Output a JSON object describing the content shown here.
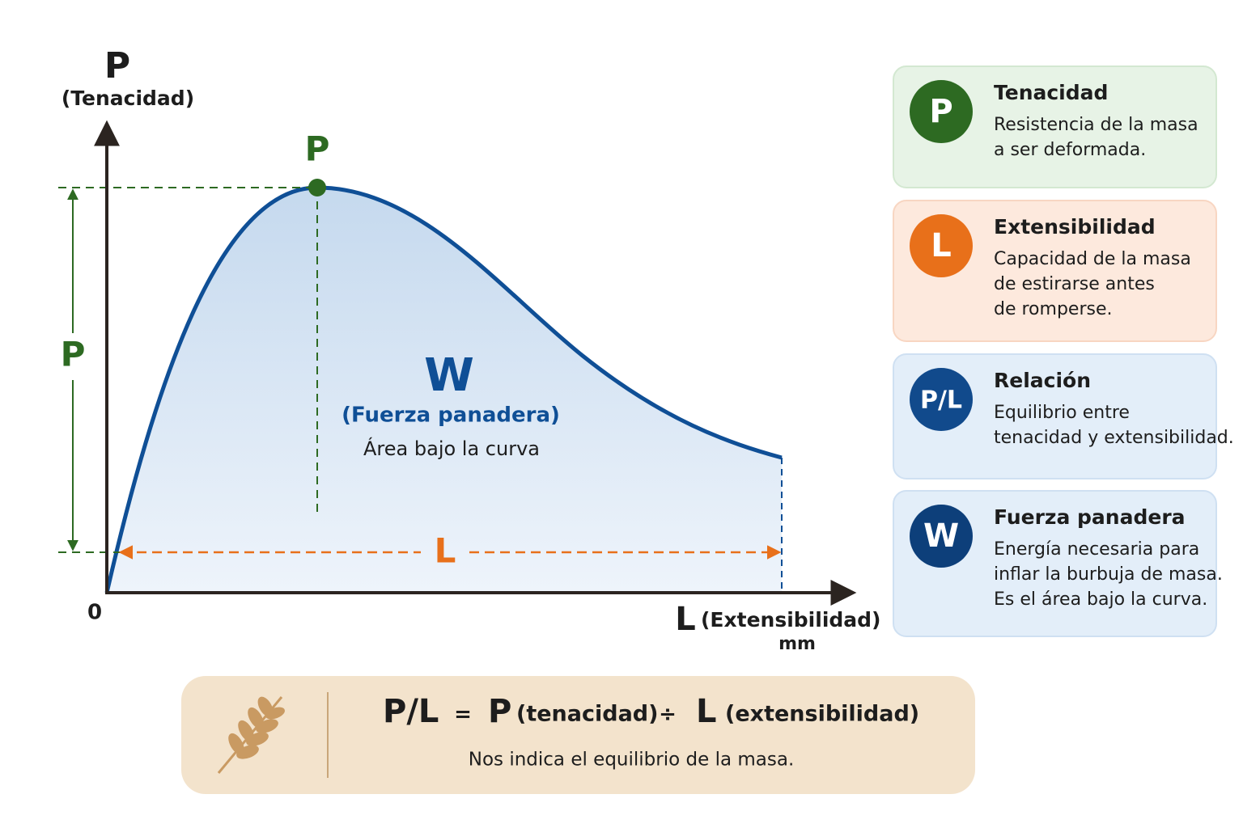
{
  "diagram": {
    "y_axis": {
      "letter": "P",
      "label": "(Tenacidad)"
    },
    "origin": "0",
    "x_axis": {
      "letter": "L",
      "label": "(Extensibilidad)",
      "unit": "mm"
    },
    "peak_label": "P",
    "height_label": "P",
    "length_label": "L",
    "area": {
      "letter": "W",
      "name": "(Fuerza panadera)",
      "note": "Área bajo la curva"
    }
  },
  "cards": [
    {
      "icon": "P",
      "title": "Tenacidad",
      "lines": [
        "Resistencia de la masa",
        "a ser deformada."
      ]
    },
    {
      "icon": "L",
      "title": "Extensibilidad",
      "lines": [
        "Capacidad de la masa",
        "de estirarse antes",
        "de romperse."
      ]
    },
    {
      "icon": "P/L",
      "title": "Relación",
      "lines": [
        "Equilibrio entre",
        "tenacidad y extensibilidad."
      ]
    },
    {
      "icon": "W",
      "title": "Fuerza panadera",
      "lines": [
        "Energía necesaria para",
        "inflar la burbuja de masa.",
        "Es el área bajo la curva."
      ]
    }
  ],
  "formula": {
    "ratio": "P/L",
    "equals": "=",
    "p": "P",
    "p_label": "(tenacidad)",
    "divide": "÷",
    "l": "L",
    "l_label": "(extensibilidad)",
    "note": "Nos indica el equilibrio de la masa."
  }
}
